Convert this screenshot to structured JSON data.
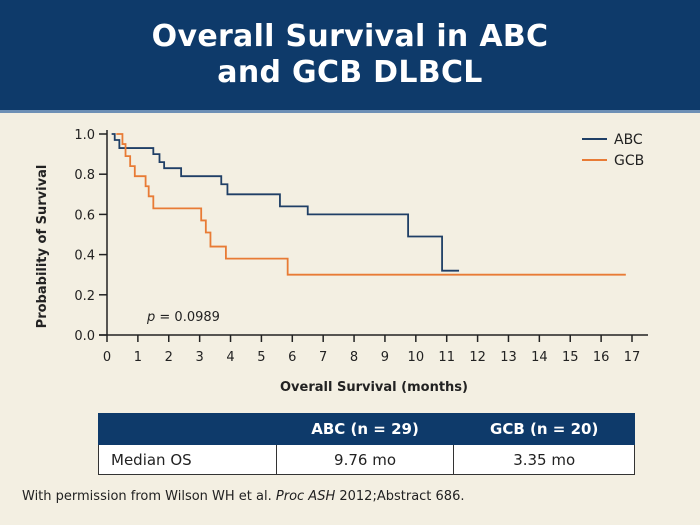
{
  "title": {
    "line1": "Overall Survival in ABC",
    "line2": "and GCB DLBCL"
  },
  "colors": {
    "header_bg": "#0e3a6a",
    "abc": "#1f3f66",
    "gcb": "#e87b35",
    "background": "#f3efe2"
  },
  "chart_data": {
    "type": "line",
    "step": true,
    "xlabel": "Overall Survival (months)",
    "ylabel": "Probability of Survival",
    "xlim": [
      0,
      17
    ],
    "ylim": [
      0,
      1.0
    ],
    "xticks": [
      "0",
      "1",
      "2",
      "3",
      "4",
      "5",
      "6",
      "7",
      "8",
      "9",
      "10",
      "11",
      "12",
      "13",
      "14",
      "15",
      "16",
      "17"
    ],
    "yticks": [
      "0.0",
      "0.2",
      "0.4",
      "0.6",
      "0.8",
      "1.0"
    ],
    "legend_position": "top-right",
    "annotation": {
      "prefix": "p",
      "text": " = 0.0989"
    },
    "series": [
      {
        "name": "ABC",
        "color": "#1f3f66",
        "x": [
          0.15,
          0.25,
          0.4,
          0.55,
          1.5,
          1.7,
          1.85,
          2.4,
          3.7,
          3.9,
          5.6,
          6.5,
          9.75,
          10.85,
          11.4
        ],
        "y": [
          1.0,
          0.97,
          0.93,
          0.93,
          0.9,
          0.86,
          0.83,
          0.79,
          0.75,
          0.7,
          0.64,
          0.6,
          0.49,
          0.32,
          0.32
        ]
      },
      {
        "name": "GCB",
        "color": "#e87b35",
        "x": [
          0.3,
          0.5,
          0.6,
          0.75,
          0.9,
          1.25,
          1.35,
          1.5,
          3.05,
          3.2,
          3.35,
          3.85,
          5.85,
          16.8
        ],
        "y": [
          1.0,
          0.95,
          0.89,
          0.84,
          0.79,
          0.74,
          0.69,
          0.63,
          0.57,
          0.51,
          0.44,
          0.38,
          0.3,
          0.3
        ]
      }
    ]
  },
  "table": {
    "headers": [
      "",
      "ABC (n = 29)",
      "GCB (n = 20)"
    ],
    "rows": [
      {
        "label": "Median OS",
        "abc": "9.76 mo",
        "gcb": "3.35 mo"
      }
    ]
  },
  "footnote": {
    "prefix": "With permission from Wilson WH et al. ",
    "journal": "Proc ASH",
    "suffix": " 2012;Abstract 686."
  }
}
